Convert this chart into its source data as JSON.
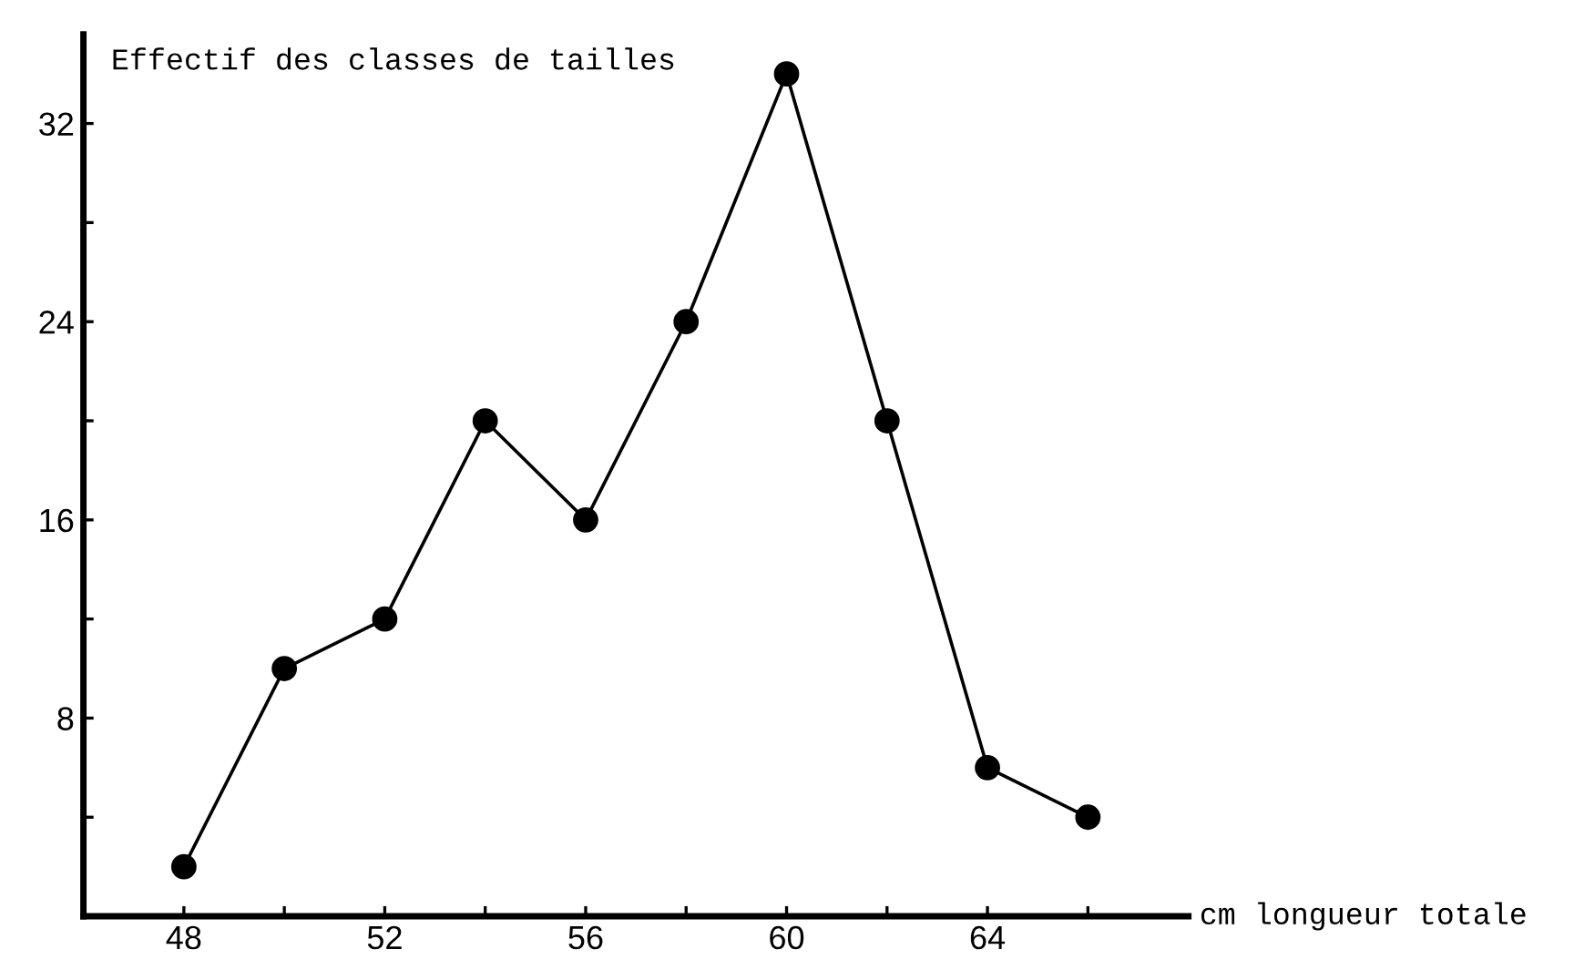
{
  "chart_data": {
    "type": "line",
    "xlabel": "cm longueur totale",
    "ylabel": "Effectif des classes de tailles",
    "x": [
      48,
      50,
      52,
      54,
      56,
      58,
      60,
      62,
      64,
      66
    ],
    "series": [
      {
        "color": "#000000",
        "values": [
          2,
          10,
          12,
          20,
          16,
          24,
          34,
          20,
          6,
          4
        ]
      }
    ],
    "xlim": [
      46,
      68
    ],
    "ylim": [
      0,
      35.6
    ],
    "xticks": [
      48,
      {
        "value": 50,
        "label": null
      },
      52,
      {
        "value": 54,
        "label": null
      },
      56,
      {
        "value": 58,
        "label": null
      },
      60,
      {
        "value": 62,
        "label": null
      },
      64,
      {
        "value": 66,
        "label": null
      }
    ],
    "yticks": [
      {
        "value": 4,
        "label": null
      },
      8,
      {
        "value": 12,
        "label": null
      },
      16,
      {
        "value": 20,
        "label": null
      },
      24,
      {
        "value": 28,
        "label": null
      },
      32
    ],
    "marker": "circle",
    "line_style": "solid",
    "grid": false,
    "legend": false
  }
}
